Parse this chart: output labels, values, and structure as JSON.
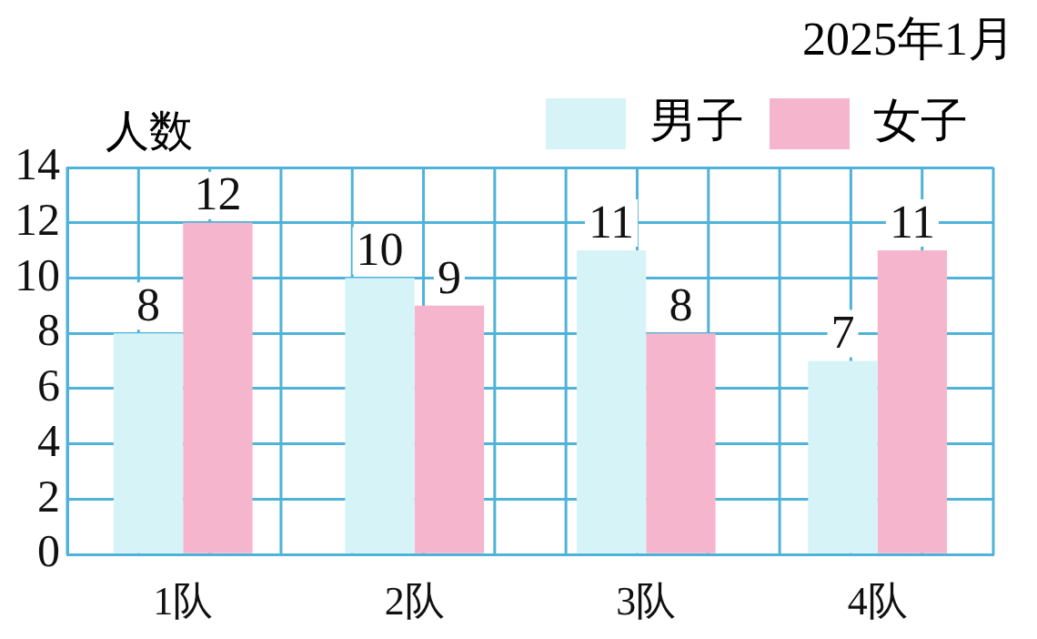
{
  "chart_data": {
    "type": "bar",
    "title": "2025年1月",
    "ylabel": "人数",
    "categories": [
      "1队",
      "2队",
      "3队",
      "4队"
    ],
    "series": [
      {
        "name": "男子",
        "color": "#d6f3f7",
        "values": [
          8,
          10,
          11,
          7
        ]
      },
      {
        "name": "女子",
        "color": "#f5b5cc",
        "values": [
          12,
          9,
          8,
          11
        ]
      }
    ],
    "ylim": [
      0,
      14
    ],
    "yticks": [
      0,
      2,
      4,
      6,
      8,
      10,
      12,
      14
    ],
    "grid": true,
    "legend": "top right",
    "data_labels": true
  }
}
